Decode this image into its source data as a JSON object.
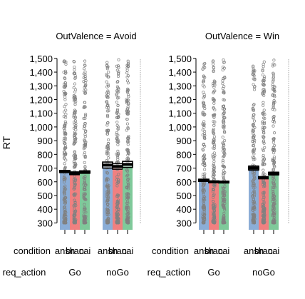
{
  "chart_data": {
    "type": "bar",
    "ylabel": "RT",
    "ylim": [
      250,
      1520
    ],
    "yticks": [
      300,
      400,
      500,
      600,
      700,
      800,
      900,
      1000,
      1100,
      1200,
      1300,
      1400,
      1500
    ],
    "ytick_labels": [
      "300",
      "400",
      "500",
      "600",
      "700",
      "800",
      "900",
      "1,000",
      "1,100",
      "1,200",
      "1,300",
      "1,400",
      "1,500"
    ],
    "row_labels": {
      "condition": "condition",
      "req_action": "req_action"
    },
    "condition_labels": [
      "ansh",
      "bran",
      "cai"
    ],
    "colors": {
      "ansh": "#8BADD6",
      "bran": "#F08080",
      "cai": "#7FC99A"
    },
    "grid": false,
    "panels": [
      {
        "title": "OutValence = Avoid",
        "groups": [
          {
            "req_action": "Go",
            "means": [
              675,
              662,
              671
            ],
            "band": [
              8,
              10,
              9
            ]
          },
          {
            "req_action": "noGo",
            "means": [
              722,
              712,
              727
            ],
            "band": [
              22,
              20,
              22
            ]
          }
        ]
      },
      {
        "title": "OutValence = Win",
        "groups": [
          {
            "req_action": "Go",
            "means": [
              611,
              600,
              598
            ],
            "band": [
              8,
              6,
              6
            ]
          },
          {
            "req_action": "noGo",
            "means": [
              700,
              630,
              660
            ],
            "band": [
              15,
              8,
              10
            ]
          }
        ]
      }
    ]
  }
}
